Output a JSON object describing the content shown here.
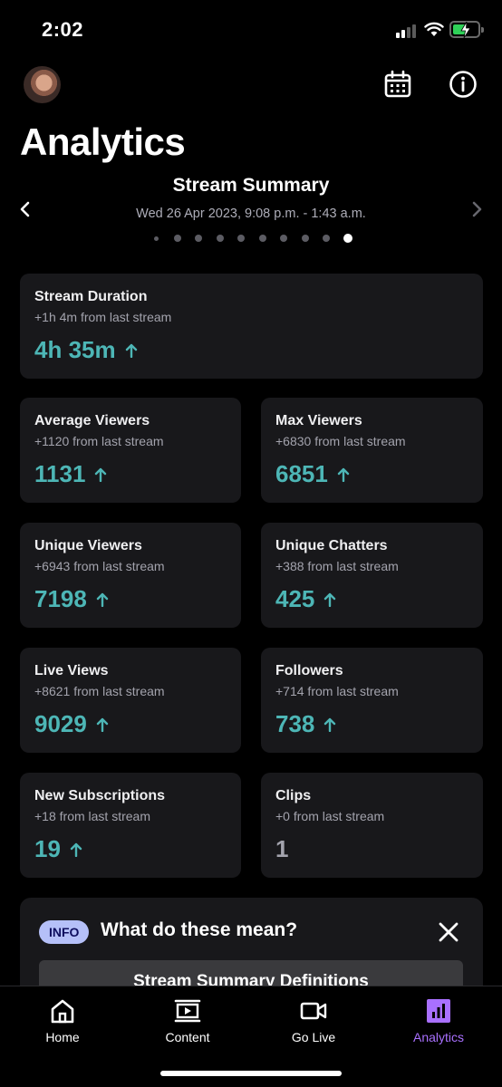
{
  "status_bar": {
    "time": "2:02"
  },
  "header": {
    "title": "Analytics"
  },
  "summary": {
    "title": "Stream Summary",
    "date": "Wed 26 Apr 2023, 9:08 p.m. - 1:43 a.m.",
    "page_count": 10,
    "active_page": 10
  },
  "cards": [
    {
      "title": "Stream Duration",
      "sub": "+1h 4m from last stream",
      "value": "4h 35m",
      "trend": "up"
    },
    {
      "title": "Average Viewers",
      "sub": "+1120 from last stream",
      "value": "1131",
      "trend": "up"
    },
    {
      "title": "Max Viewers",
      "sub": "+6830 from last stream",
      "value": "6851",
      "trend": "up"
    },
    {
      "title": "Unique Viewers",
      "sub": "+6943 from last stream",
      "value": "7198",
      "trend": "up"
    },
    {
      "title": "Unique Chatters",
      "sub": "+388 from last stream",
      "value": "425",
      "trend": "up"
    },
    {
      "title": "Live Views",
      "sub": "+8621 from last stream",
      "value": "9029",
      "trend": "up"
    },
    {
      "title": "Followers",
      "sub": "+714 from last stream",
      "value": "738",
      "trend": "up"
    },
    {
      "title": "New Subscriptions",
      "sub": "+18 from last stream",
      "value": "19",
      "trend": "up"
    },
    {
      "title": "Clips",
      "sub": "+0 from last stream",
      "value": "1",
      "trend": "none"
    }
  ],
  "info_panel": {
    "badge": "INFO",
    "heading": "What do these mean?",
    "button_label": "Stream Summary Definitions"
  },
  "tabs": [
    {
      "label": "Home",
      "icon": "home-icon"
    },
    {
      "label": "Content",
      "icon": "content-icon"
    },
    {
      "label": "Go Live",
      "icon": "go-live-icon"
    },
    {
      "label": "Analytics",
      "icon": "analytics-icon",
      "active": true
    }
  ],
  "colors": {
    "accent": "#a970ff",
    "positive": "#4db6b6",
    "card_bg": "#18181b",
    "badge_bg": "#b5c0f8"
  }
}
